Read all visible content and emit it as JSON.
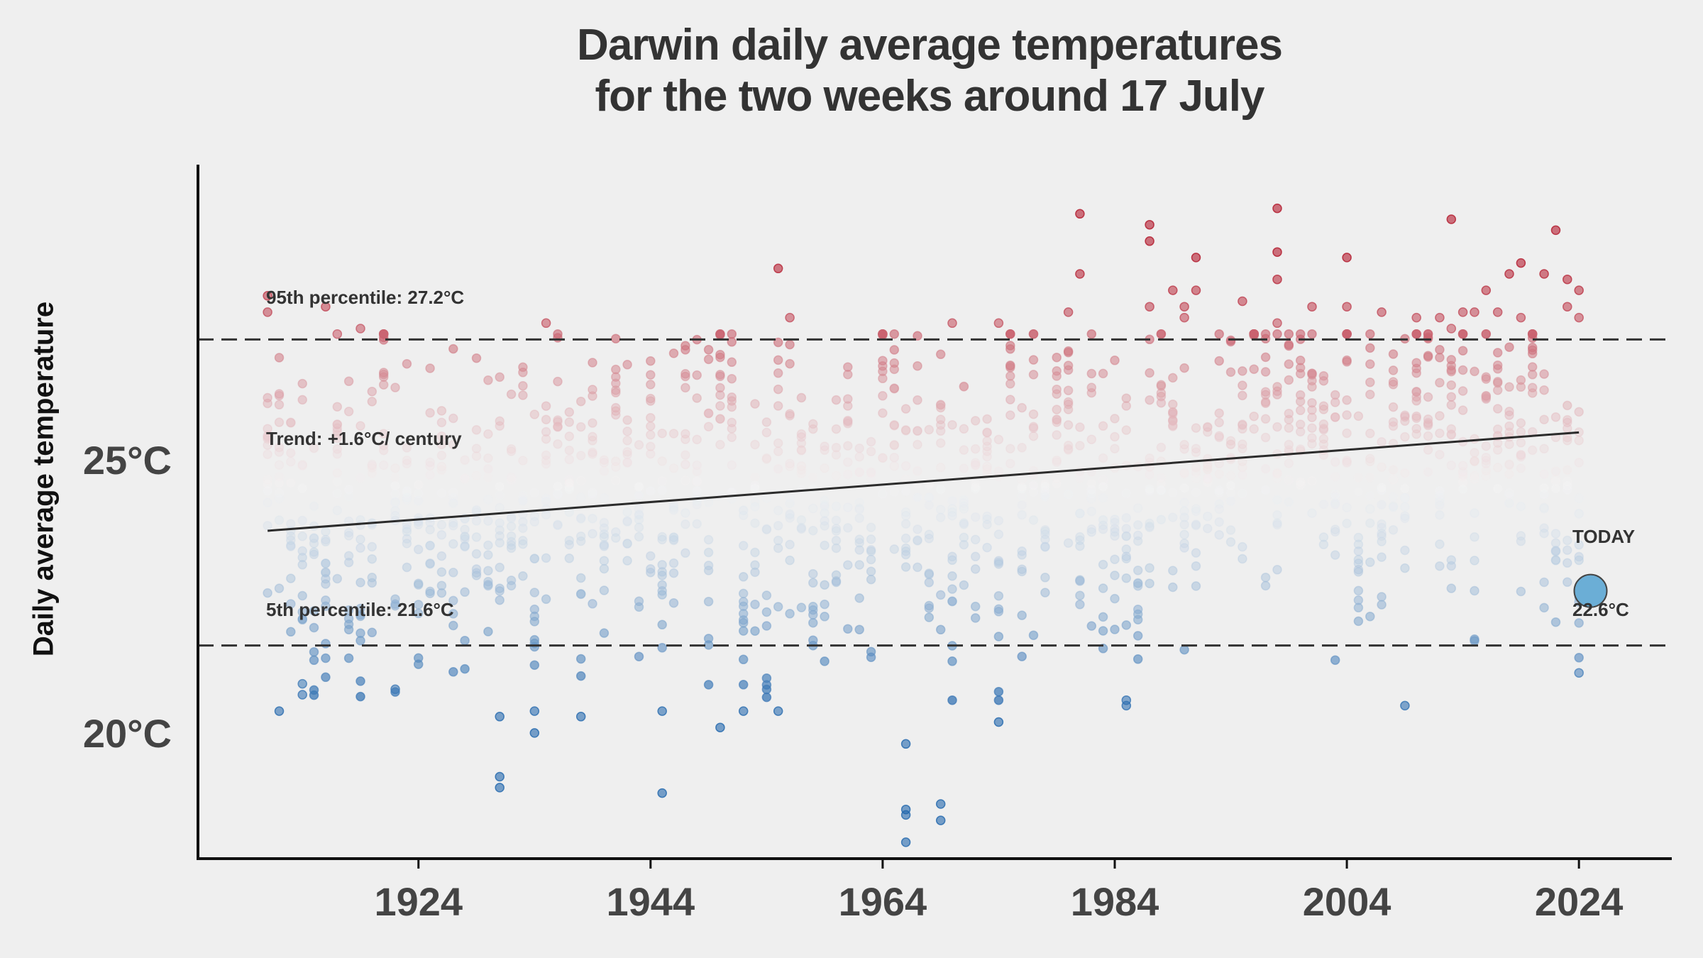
{
  "chart_data": {
    "type": "scatter",
    "title": [
      "Darwin daily average temperatures",
      "for the two weeks around 17 July"
    ],
    "ylabel": "Daily average temperature",
    "xlabel": "",
    "xlim": [
      1905,
      2032
    ],
    "ylim": [
      17.7,
      30.4
    ],
    "xticks": [
      1924,
      1944,
      1964,
      1984,
      2004,
      2024
    ],
    "xtick_labels": [
      "1924",
      "1944",
      "1964",
      "1984",
      "2004",
      "2024"
    ],
    "yticks": [
      20,
      25
    ],
    "ytick_labels": [
      "20°C",
      "25°C"
    ],
    "colormap": {
      "cold": "#2166ac",
      "mid": "#f7f7f7",
      "warm": "#b2182b"
    },
    "percentile_95": {
      "value": 27.2,
      "label": "95th percentile: 27.2°C"
    },
    "percentile_5": {
      "value": 21.6,
      "label": "5th percentile: 21.6°C"
    },
    "trend": {
      "label": "Trend: +1.6°C/ century",
      "start": [
        1911,
        23.7
      ],
      "end": [
        2024,
        25.5
      ]
    },
    "today": {
      "label": "TODAY",
      "year": 2025,
      "value": 22.6,
      "value_label": "22.6°C",
      "color": "#6baed6"
    },
    "years": [
      1911,
      1912,
      1913,
      1914,
      1915,
      1916,
      1917,
      1918,
      1919,
      1920,
      1921,
      1922,
      1923,
      1924,
      1925,
      1926,
      1927,
      1928,
      1929,
      1930,
      1931,
      1932,
      1933,
      1934,
      1935,
      1936,
      1937,
      1938,
      1939,
      1940,
      1941,
      1942,
      1943,
      1944,
      1945,
      1946,
      1947,
      1948,
      1949,
      1950,
      1951,
      1952,
      1953,
      1954,
      1955,
      1956,
      1957,
      1958,
      1959,
      1960,
      1961,
      1962,
      1963,
      1964,
      1965,
      1966,
      1967,
      1968,
      1969,
      1970,
      1971,
      1972,
      1973,
      1974,
      1975,
      1976,
      1977,
      1978,
      1979,
      1980,
      1981,
      1982,
      1983,
      1984,
      1985,
      1986,
      1987,
      1988,
      1989,
      1990,
      1991,
      1992,
      1993,
      1994,
      1995,
      1996,
      1997,
      1998,
      1999,
      2000,
      2001,
      2002,
      2003,
      2004,
      2005,
      2006,
      2007,
      2008,
      2009,
      2010,
      2011,
      2012,
      2013,
      2014,
      2015,
      2016,
      2017,
      2018,
      2019,
      2020,
      2021,
      2022,
      2023,
      2024
    ],
    "extremes": [
      {
        "x": 1911,
        "y": 28.0
      },
      {
        "x": 1911,
        "y": 27.7
      },
      {
        "x": 1912,
        "y": 20.4
      },
      {
        "x": 1914,
        "y": 20.7
      },
      {
        "x": 1914,
        "y": 20.9
      },
      {
        "x": 1916,
        "y": 27.8
      },
      {
        "x": 1917,
        "y": 27.3
      },
      {
        "x": 1919,
        "y": 27.4
      },
      {
        "x": 1922,
        "y": 20.8
      },
      {
        "x": 1935,
        "y": 27.5
      },
      {
        "x": 1931,
        "y": 19.0
      },
      {
        "x": 1931,
        "y": 19.2
      },
      {
        "x": 1931,
        "y": 20.3
      },
      {
        "x": 1934,
        "y": 20.0
      },
      {
        "x": 1934,
        "y": 20.4
      },
      {
        "x": 1938,
        "y": 20.3
      },
      {
        "x": 1945,
        "y": 18.9
      },
      {
        "x": 1945,
        "y": 20.4
      },
      {
        "x": 1950,
        "y": 20.1
      },
      {
        "x": 1952,
        "y": 20.4
      },
      {
        "x": 1955,
        "y": 20.4
      },
      {
        "x": 1955,
        "y": 28.5
      },
      {
        "x": 1956,
        "y": 27.6
      },
      {
        "x": 1966,
        "y": 18.5
      },
      {
        "x": 1966,
        "y": 18.6
      },
      {
        "x": 1966,
        "y": 18.0
      },
      {
        "x": 1966,
        "y": 19.8
      },
      {
        "x": 1969,
        "y": 18.7
      },
      {
        "x": 1969,
        "y": 18.4
      },
      {
        "x": 1970,
        "y": 27.5
      },
      {
        "x": 1974,
        "y": 20.2
      },
      {
        "x": 1974,
        "y": 27.5
      },
      {
        "x": 1980,
        "y": 27.7
      },
      {
        "x": 1981,
        "y": 29.5
      },
      {
        "x": 1981,
        "y": 28.4
      },
      {
        "x": 1985,
        "y": 20.6
      },
      {
        "x": 1985,
        "y": 20.5
      },
      {
        "x": 1987,
        "y": 29.3
      },
      {
        "x": 1987,
        "y": 29.0
      },
      {
        "x": 1987,
        "y": 27.8
      },
      {
        "x": 1989,
        "y": 28.1
      },
      {
        "x": 1990,
        "y": 27.8
      },
      {
        "x": 1990,
        "y": 27.6
      },
      {
        "x": 1991,
        "y": 28.7
      },
      {
        "x": 1991,
        "y": 28.1
      },
      {
        "x": 1995,
        "y": 27.9
      },
      {
        "x": 1998,
        "y": 29.6
      },
      {
        "x": 1998,
        "y": 28.8
      },
      {
        "x": 1998,
        "y": 28.3
      },
      {
        "x": 1998,
        "y": 27.5
      },
      {
        "x": 2001,
        "y": 27.8
      },
      {
        "x": 2004,
        "y": 28.7
      },
      {
        "x": 2004,
        "y": 27.8
      },
      {
        "x": 2004,
        "y": 27.3
      },
      {
        "x": 2007,
        "y": 27.7
      },
      {
        "x": 2009,
        "y": 20.5
      },
      {
        "x": 2010,
        "y": 27.6
      },
      {
        "x": 2012,
        "y": 27.6
      },
      {
        "x": 2013,
        "y": 29.4
      },
      {
        "x": 2013,
        "y": 27.4
      },
      {
        "x": 2014,
        "y": 27.7
      },
      {
        "x": 2015,
        "y": 27.7
      },
      {
        "x": 2016,
        "y": 28.1
      },
      {
        "x": 2017,
        "y": 27.7
      },
      {
        "x": 2018,
        "y": 28.4
      },
      {
        "x": 2019,
        "y": 28.6
      },
      {
        "x": 2019,
        "y": 27.6
      },
      {
        "x": 2021,
        "y": 28.4
      },
      {
        "x": 2022,
        "y": 29.2
      },
      {
        "x": 2023,
        "y": 28.3
      },
      {
        "x": 2023,
        "y": 27.8
      },
      {
        "x": 2024,
        "y": 28.1
      },
      {
        "x": 2024,
        "y": 27.6
      },
      {
        "x": 2024,
        "y": 21.1
      }
    ]
  }
}
